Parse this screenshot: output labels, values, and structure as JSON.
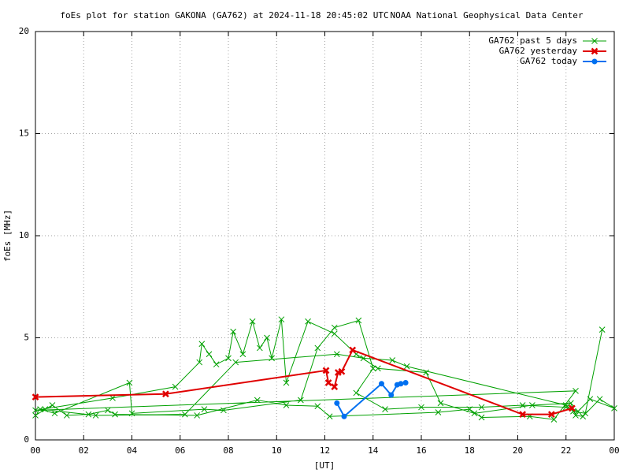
{
  "chart_data": {
    "type": "line",
    "title": "foEs plot for station GAKONA (GA762) at 2024-11-18 20:45:02 UTC",
    "subtitle": "NOAA National Geophysical Data Center",
    "xlabel": "[UT]",
    "ylabel": "foEs [MHz]",
    "xlim": [
      0,
      24
    ],
    "ylim": [
      0,
      20
    ],
    "xticks": [
      {
        "value": 0,
        "label": "00"
      },
      {
        "value": 2,
        "label": "02"
      },
      {
        "value": 4,
        "label": "04"
      },
      {
        "value": 6,
        "label": "06"
      },
      {
        "value": 8,
        "label": "08"
      },
      10,
      12,
      14,
      16,
      18,
      20,
      22,
      {
        "value": 24,
        "label": "00"
      }
    ],
    "yticks": [
      0,
      5,
      10,
      15,
      20
    ],
    "grid": true,
    "legend": "top-right",
    "series": [
      {
        "name": "GA762 past 5 days",
        "color": "#00a000",
        "marker": "x",
        "x": [
          0,
          0.4,
          0.7,
          1.3,
          2.2,
          3.0,
          3.3,
          6.7,
          9.2,
          10.4,
          11.7,
          12.2,
          16.7,
          18.0,
          18.5,
          20.5,
          21.5,
          22.4,
          0,
          3.2,
          5.8,
          6.8,
          6.9,
          7.2,
          7.5,
          8.0,
          8.2,
          8.6,
          9.0,
          9.3,
          9.6,
          9.8,
          10.2,
          10.4,
          11.3,
          12.4,
          13.3,
          14.2,
          16.2,
          16.8,
          18.2,
          20.6,
          22.2,
          22.4,
          22.7,
          23.4,
          24,
          23.0,
          22.5,
          22.0,
          20.2,
          18.5,
          16.0,
          14.5,
          13.3,
          14.0,
          13.4,
          12.4,
          11.7,
          11.0,
          7.8,
          7.0,
          4.0,
          3.9,
          0.8,
          0.2,
          2.5,
          6.2,
          8.3,
          12.5,
          13.6,
          14.8,
          15.4,
          22.0,
          22.3,
          22.8,
          23.5
        ],
        "values": [
          1.2,
          1.5,
          1.7,
          1.2,
          1.25,
          1.45,
          1.25,
          1.2,
          1.95,
          1.7,
          1.65,
          1.15,
          1.35,
          1.5,
          1.1,
          1.15,
          1.0,
          2.4,
          1.45,
          2.05,
          2.6,
          3.8,
          4.7,
          4.2,
          3.7,
          4.0,
          5.3,
          4.2,
          5.8,
          4.5,
          5.0,
          4.0,
          5.9,
          2.8,
          5.8,
          5.2,
          4.2,
          3.5,
          3.3,
          1.8,
          1.3,
          1.7,
          1.8,
          1.2,
          1.15,
          2.0,
          1.55,
          2.0,
          1.4,
          1.6,
          1.7,
          1.6,
          1.6,
          1.5,
          2.3,
          3.5,
          5.85,
          5.5,
          4.5,
          1.95,
          1.45,
          1.5,
          1.3,
          2.8,
          1.3,
          1.5,
          1.2,
          1.25,
          3.8,
          4.2,
          4.0,
          3.9,
          3.6,
          1.7,
          1.4,
          1.3,
          5.4
        ]
      },
      {
        "name": "GA762 yesterday",
        "color": "#e00000",
        "marker": "X",
        "x": [
          0,
          5.4,
          12.05,
          12.15,
          12.4,
          12.55,
          12.7,
          13.15,
          20.2,
          21.4,
          22.25
        ],
        "values": [
          2.1,
          2.25,
          3.4,
          2.8,
          2.6,
          3.3,
          3.35,
          4.4,
          1.25,
          1.25,
          1.55
        ]
      },
      {
        "name": "GA762 today",
        "color": "#0070f0",
        "marker": "o",
        "x": [
          12.5,
          12.8,
          14.35,
          14.75,
          15.0,
          15.15,
          15.35
        ],
        "values": [
          1.8,
          1.15,
          2.75,
          2.2,
          2.7,
          2.75,
          2.8
        ]
      }
    ]
  }
}
